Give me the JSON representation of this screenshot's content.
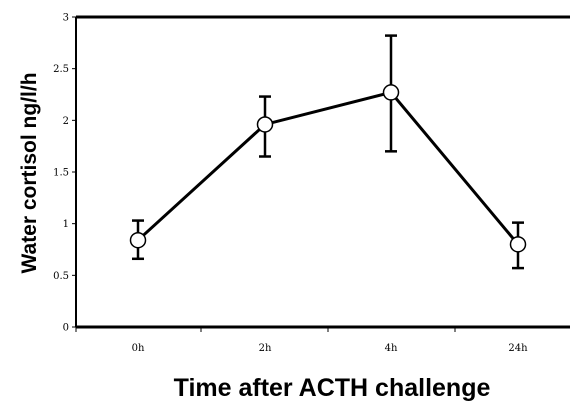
{
  "chart_data": {
    "type": "line",
    "xlabel": "Time after ACTH challenge",
    "ylabel": "Water cortisol ng/l/h",
    "categories": [
      "0h",
      "2h",
      "4h",
      "24h"
    ],
    "series": [
      {
        "values": [
          0.84,
          1.96,
          2.27,
          0.8
        ],
        "error_low": [
          0.66,
          1.65,
          1.7,
          0.57
        ],
        "error_high": [
          1.03,
          2.23,
          2.82,
          1.01
        ]
      }
    ],
    "ylim": [
      0,
      3
    ],
    "yticks": [
      "0",
      "0.5",
      "1",
      "1.5",
      "2",
      "2.5",
      "3"
    ],
    "grid": false,
    "marker": "open-circle",
    "colors": {
      "line": "#000000",
      "marker_fill": "#ffffff"
    }
  }
}
